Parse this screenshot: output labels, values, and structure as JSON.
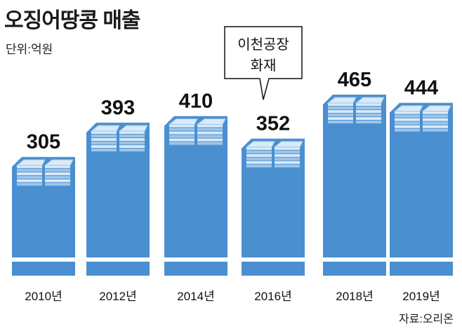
{
  "title": "오징어땅콩 매출",
  "unit_label": "단위:억원",
  "source": "자료:오리온",
  "colors": {
    "bar": "#4a8fd0",
    "bar_dark": "#3a7cc0",
    "cash_light": "#dbeaf8",
    "cash_mid": "#9ec6ea",
    "baseline_strip": "#ffffff"
  },
  "icon_name": "cash-stack-icon",
  "chart_data": {
    "type": "bar",
    "categories": [
      "2010년",
      "2012년",
      "2014년",
      "2016년",
      "2018년",
      "2019년"
    ],
    "values": [
      305,
      393,
      410,
      352,
      465,
      444
    ],
    "value_labels": [
      "305",
      "393",
      "410",
      "352",
      "465",
      "444"
    ],
    "title": "오징어땅콩 매출",
    "ylabel": "단위:억원",
    "annotations": [
      {
        "category": "2016년",
        "text_lines": [
          "이천공장",
          "화재"
        ]
      }
    ]
  }
}
